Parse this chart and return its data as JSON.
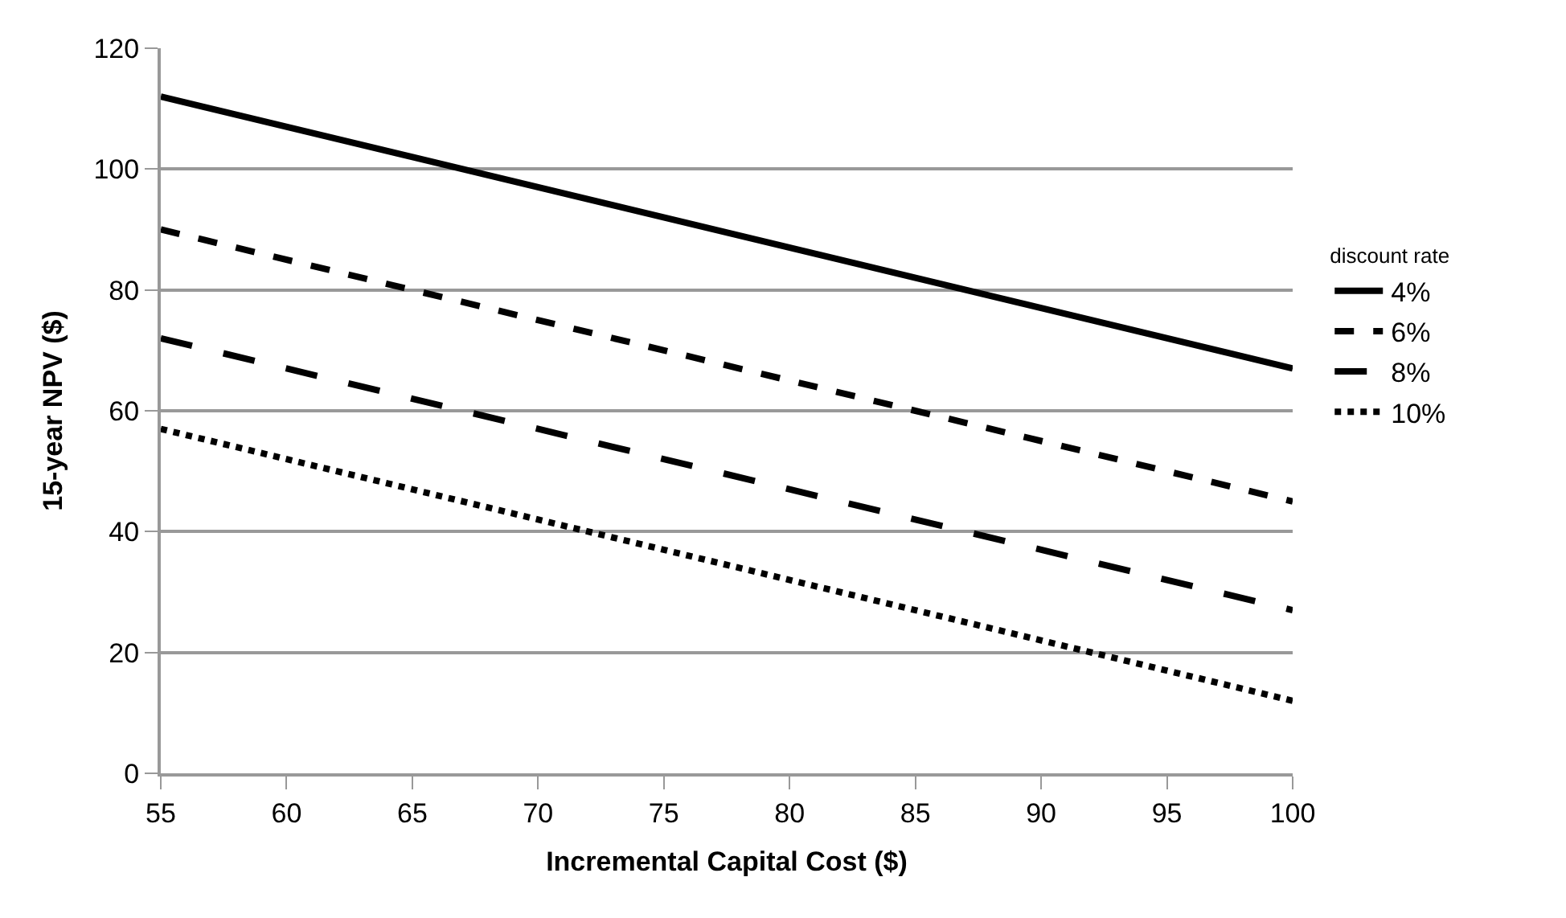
{
  "chart_data": {
    "type": "line",
    "xlabel": "Incremental Capital Cost ($)",
    "ylabel": "15-year NPV ($)",
    "legend_title": "discount rate",
    "x": [
      55,
      100
    ],
    "series": [
      {
        "name": "4%",
        "color": "#000000",
        "line_style": "solid",
        "values": [
          112,
          67
        ]
      },
      {
        "name": "6%",
        "color": "#000000",
        "line_style": "dashed",
        "values": [
          90,
          45
        ]
      },
      {
        "name": "8%",
        "color": "#000000",
        "line_style": "longdash",
        "values": [
          72,
          27
        ]
      },
      {
        "name": "10%",
        "color": "#000000",
        "line_style": "dotted",
        "values": [
          57,
          12
        ]
      }
    ],
    "xlim": [
      55,
      100
    ],
    "xticks": [
      55,
      60,
      65,
      70,
      75,
      80,
      85,
      90,
      95,
      100
    ],
    "ylim": [
      0,
      120
    ],
    "yticks": [
      0,
      20,
      40,
      60,
      80,
      100,
      120
    ],
    "grid": "y",
    "legend": "right",
    "marker": "none"
  }
}
